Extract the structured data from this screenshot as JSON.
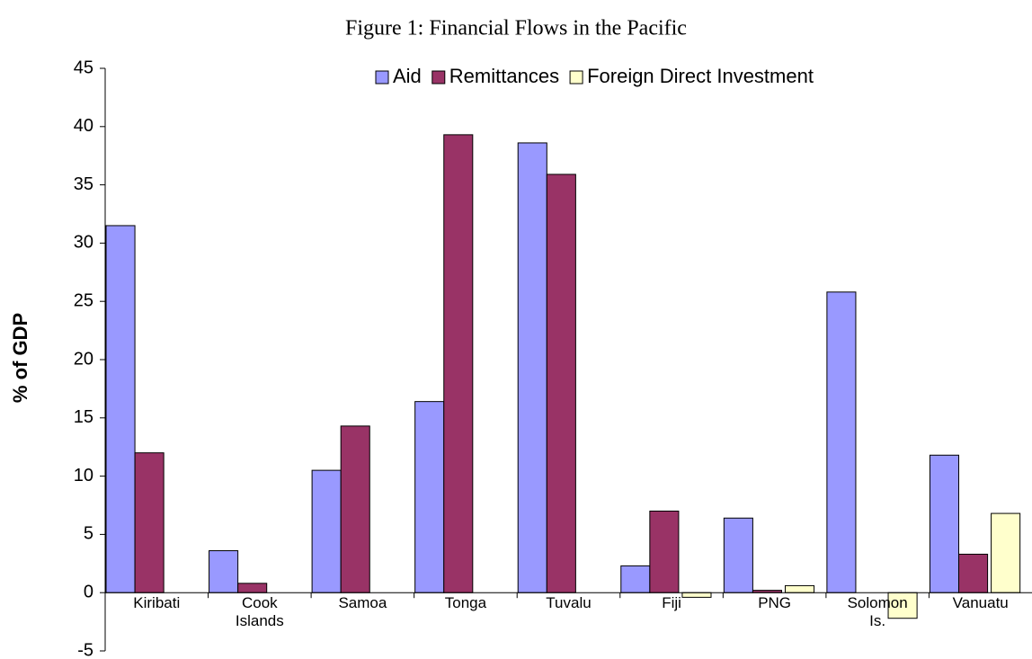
{
  "chart_data": {
    "type": "bar",
    "title": "Figure 1: Financial Flows in the Pacific",
    "ylabel": "% of GDP",
    "categories": [
      "Kiribati",
      "Cook Islands",
      "Samoa",
      "Tonga",
      "Tuvalu",
      "Fiji",
      "PNG",
      "Solomon Is.",
      "Vanuatu"
    ],
    "series": [
      {
        "name": "Aid",
        "color": "#9999ff",
        "values": [
          31.5,
          3.6,
          10.5,
          16.4,
          38.6,
          2.3,
          6.4,
          25.8,
          11.8
        ]
      },
      {
        "name": "Remittances",
        "color": "#993366",
        "values": [
          12.0,
          0.8,
          14.3,
          39.3,
          35.9,
          7.0,
          0.2,
          null,
          3.3
        ]
      },
      {
        "name": "Foreign Direct Investment",
        "color": "#ffffcc",
        "values": [
          null,
          null,
          null,
          null,
          null,
          -0.4,
          0.6,
          -2.2,
          6.8
        ]
      }
    ],
    "ylim": [
      -5,
      45
    ],
    "yticks": [
      -5,
      0,
      5,
      10,
      15,
      20,
      25,
      30,
      35,
      40,
      45
    ],
    "legend": "top"
  }
}
